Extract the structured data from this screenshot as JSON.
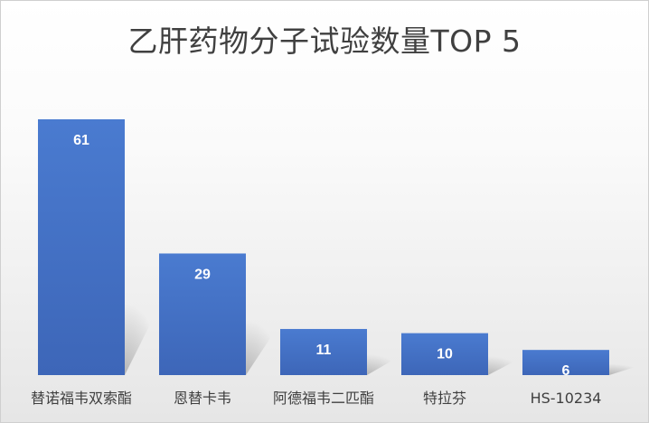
{
  "chart_data": {
    "type": "bar",
    "title": "乙肝药物分子试验数量TOP 5",
    "categories": [
      "替诺福韦双索酯",
      "恩替卡韦",
      "阿德福韦二匹酯",
      "特拉芬",
      "HS-10234"
    ],
    "values": [
      61,
      29,
      11,
      10,
      6
    ],
    "ylim": [
      0,
      61
    ],
    "grid": false,
    "legend": "none",
    "data_labels": true,
    "bar_color": "#4472C4",
    "label_color": "#404040"
  }
}
